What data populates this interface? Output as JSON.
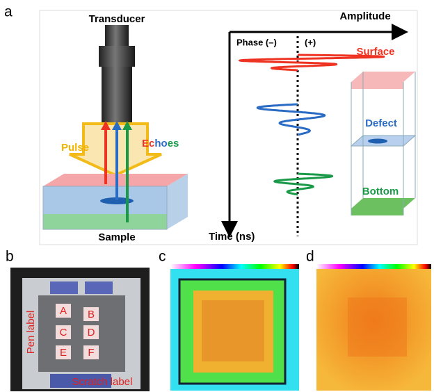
{
  "panel_a": {
    "label": "a",
    "transducer": "Transducer",
    "amplitude": "Amplitude",
    "phase_neg": "Phase (–)",
    "phase_pos": "(+)",
    "surface": "Surface",
    "pulse": "Pulse",
    "echoes": [
      "Ec",
      "ho",
      "es"
    ],
    "defect": "Defect",
    "bottom": "Bottom",
    "sample": "Sample",
    "time": "Time (ns)"
  },
  "panel_b": {
    "label": "b",
    "pads": [
      "A",
      "B",
      "C",
      "D",
      "E",
      "F"
    ],
    "pen_label": "Pen label",
    "scratch_label": "Scratch label"
  },
  "panel_c": {
    "label": "c"
  },
  "panel_d": {
    "label": "d"
  }
}
